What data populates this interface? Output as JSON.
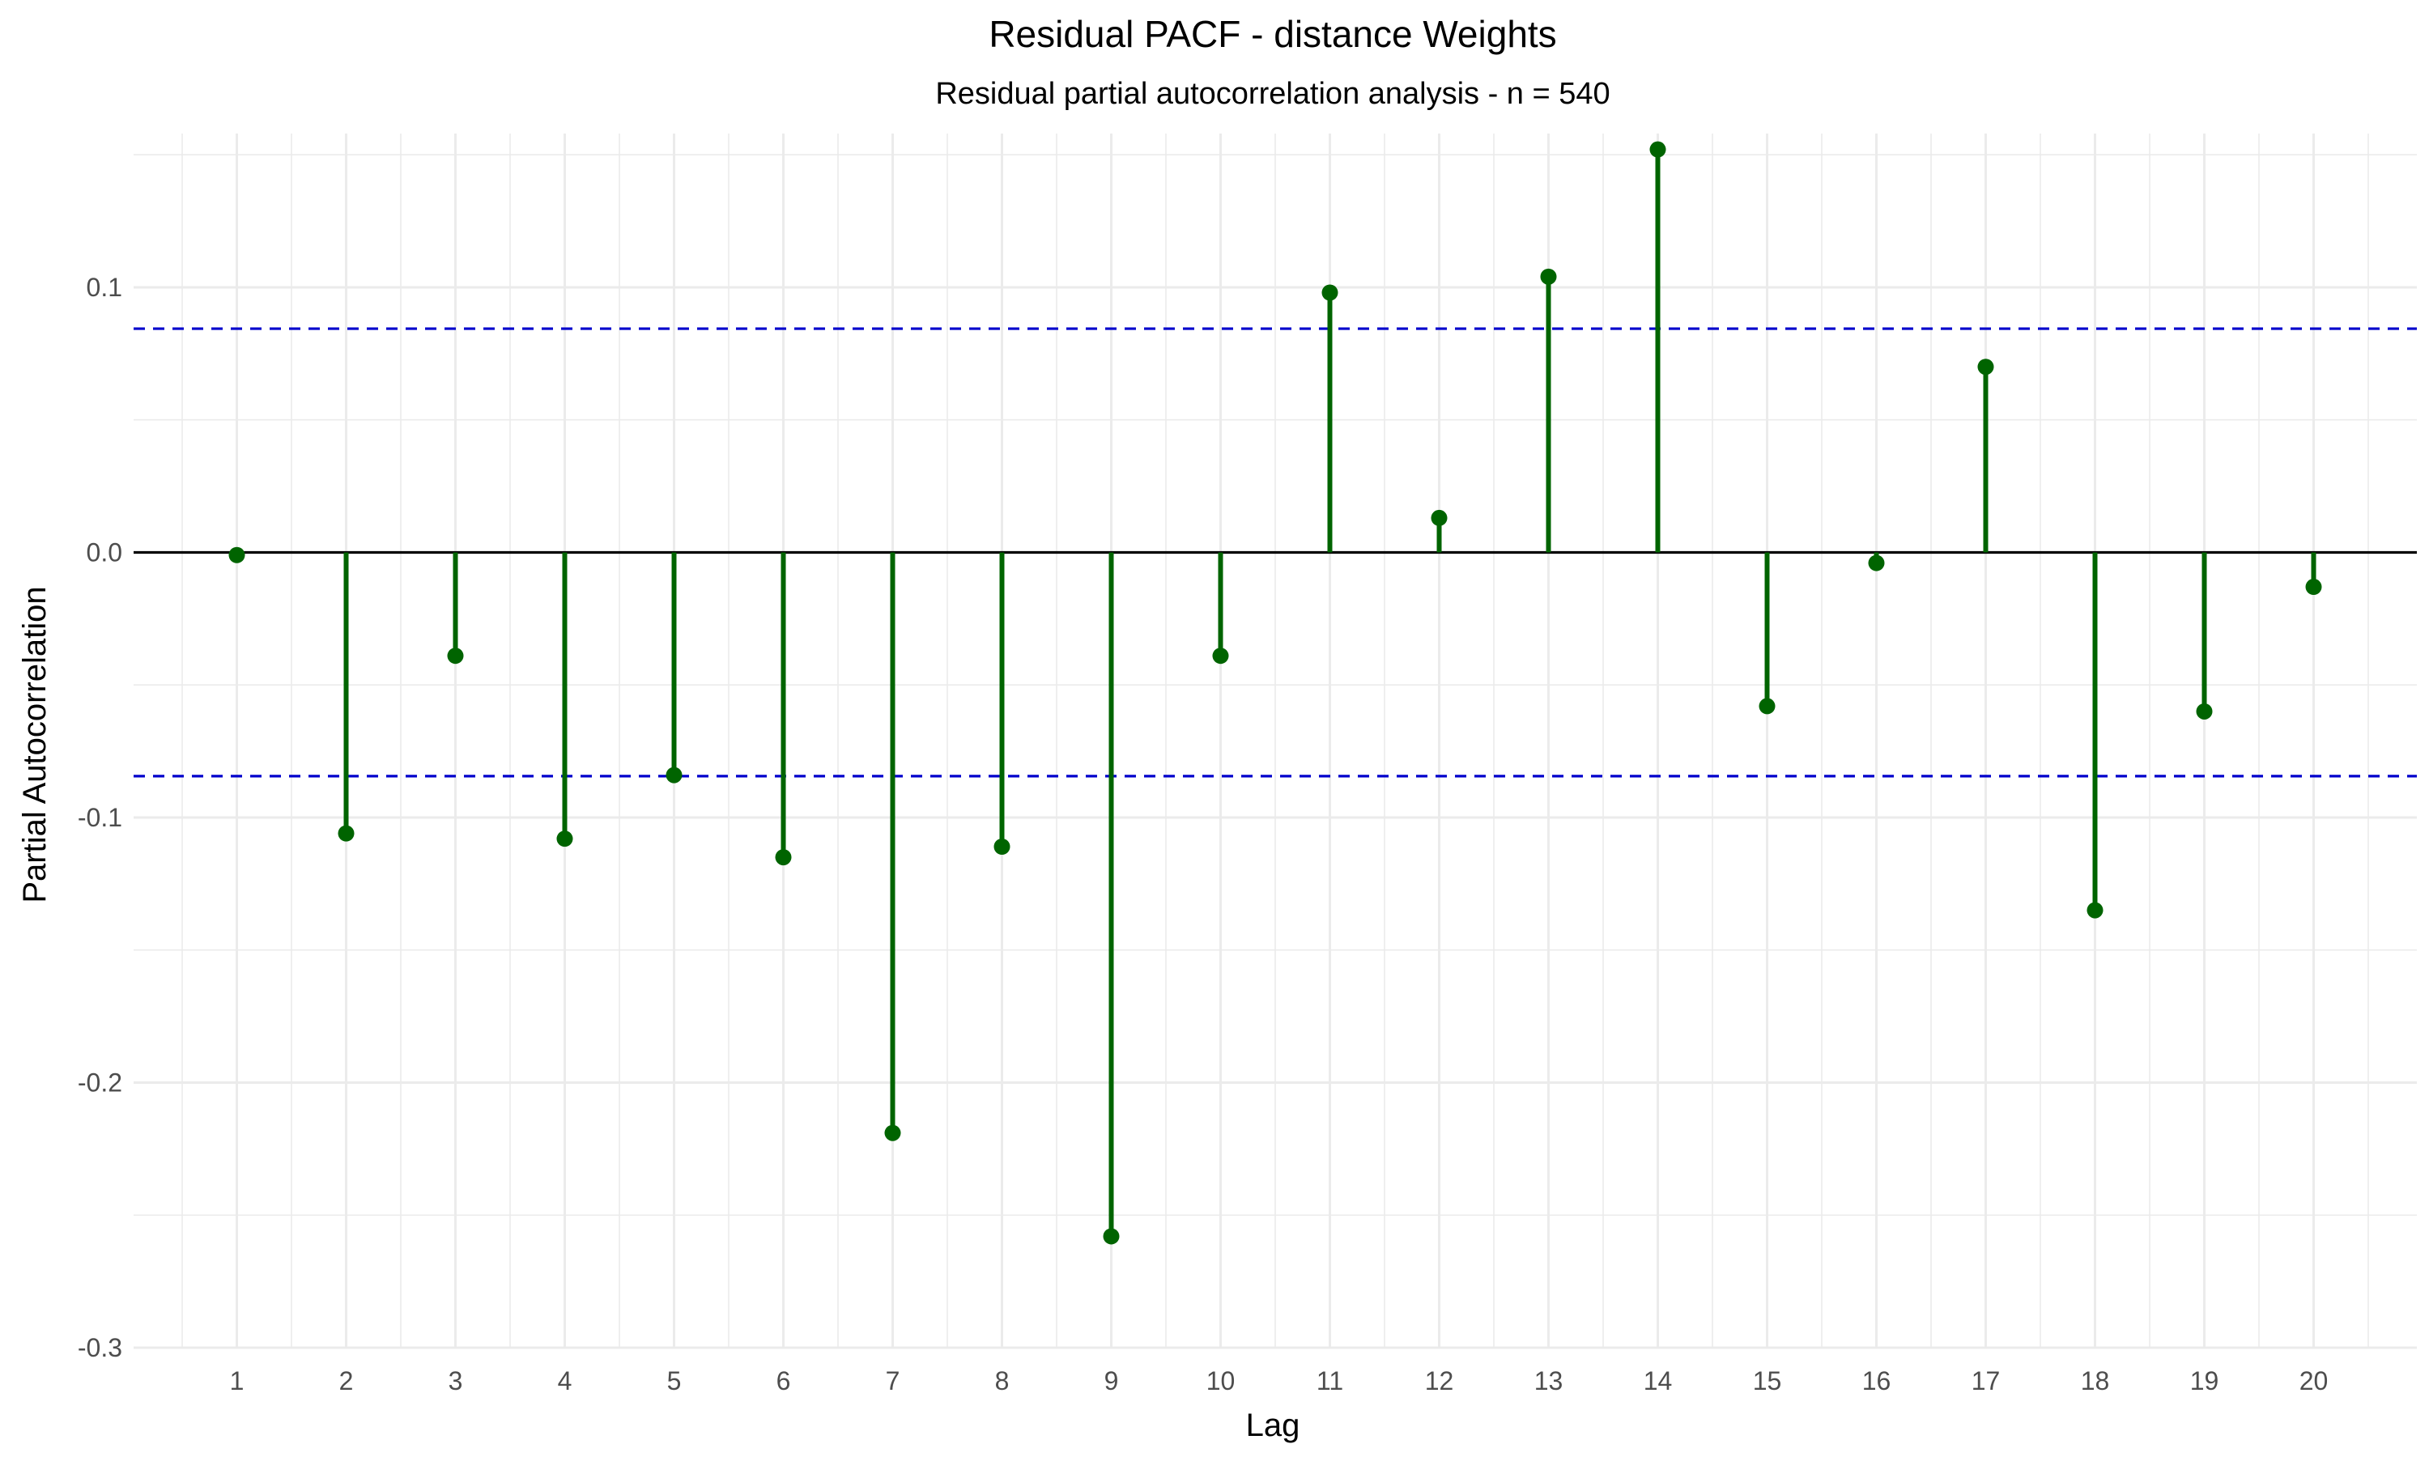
{
  "chart_data": {
    "type": "lollipop",
    "title": "Residual PACF - distance Weights",
    "subtitle": "Residual partial autocorrelation analysis - n = 540",
    "xlabel": "Lag",
    "ylabel": "Partial Autocorrelation",
    "x": [
      1,
      2,
      3,
      4,
      5,
      6,
      7,
      8,
      9,
      10,
      11,
      12,
      13,
      14,
      15,
      16,
      17,
      18,
      19,
      20
    ],
    "values": [
      -0.001,
      -0.106,
      -0.039,
      -0.108,
      -0.084,
      -0.115,
      -0.219,
      -0.111,
      -0.258,
      -0.039,
      0.098,
      0.013,
      0.104,
      0.152,
      -0.058,
      -0.004,
      0.07,
      -0.135,
      -0.06,
      -0.013
    ],
    "x_ticks": [
      "1",
      "2",
      "3",
      "4",
      "5",
      "6",
      "7",
      "8",
      "9",
      "10",
      "11",
      "12",
      "13",
      "14",
      "15",
      "16",
      "17",
      "18",
      "19",
      "20"
    ],
    "y_ticks": [
      "0.1",
      "0.0",
      "-0.1",
      "-0.2",
      "-0.3"
    ],
    "y_tick_values": [
      0.1,
      0.0,
      -0.1,
      -0.2,
      -0.3
    ],
    "ylim": [
      -0.3,
      0.158
    ],
    "xlim": [
      0.5,
      20.5
    ],
    "confidence_bounds": [
      0.0844,
      -0.0844
    ],
    "zero_line": 0,
    "grid": true,
    "colors": {
      "stem": "#006400",
      "point": "#006400",
      "confidence_line": "#0000cc",
      "zero_line": "#000000",
      "grid": "#ebebeb"
    }
  }
}
